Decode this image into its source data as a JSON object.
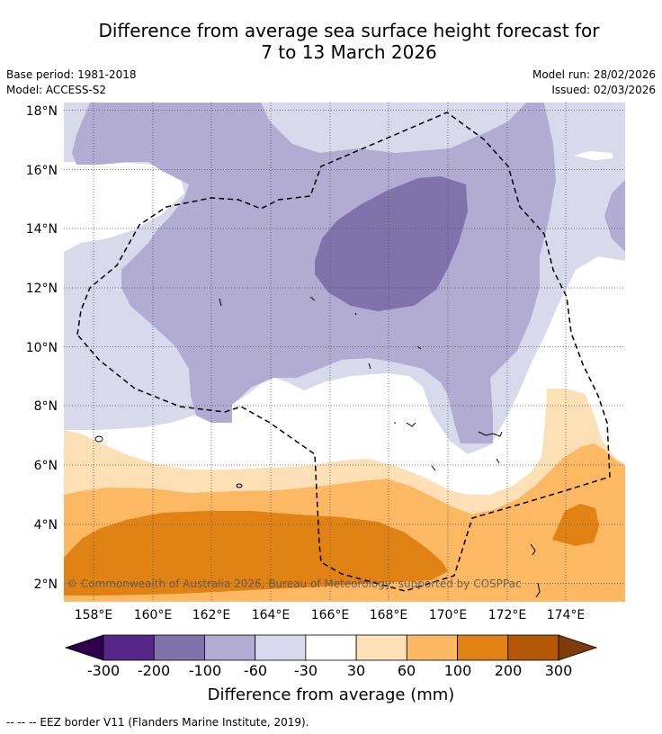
{
  "title": {
    "line1": "Difference from average sea surface height forecast for",
    "line2": "7 to 13 March 2026"
  },
  "meta": {
    "base_period": "Base period: 1981-2018",
    "model": "Model: ACCESS-S2",
    "model_run": "Model run: 28/02/2026",
    "issued": "Issued: 02/03/2026"
  },
  "map": {
    "lat_labels": [
      "18°N",
      "16°N",
      "14°N",
      "12°N",
      "10°N",
      "8°N",
      "6°N",
      "4°N",
      "2°N"
    ],
    "lon_labels": [
      "158°E",
      "160°E",
      "162°E",
      "164°E",
      "166°E",
      "168°E",
      "170°E",
      "172°E",
      "174°E"
    ],
    "copyright": "© Commonwealth of Australia 2026, Bureau of Meteorology; supported by COSPPac"
  },
  "colorbar": {
    "title": "Difference from average (mm)",
    "ticks": [
      "-300",
      "-200",
      "-100",
      "-60",
      "-30",
      "30",
      "60",
      "100",
      "200",
      "300"
    ],
    "colors": [
      "#2d004b",
      "#542788",
      "#8073ac",
      "#b2abd2",
      "#d8daeb",
      "#ffffff",
      "#fee0b6",
      "#fdb863",
      "#e08214",
      "#b35806",
      "#7f3b08"
    ]
  },
  "footnote": "--  --  -- EEZ border V11 (Flanders Marine Institute, 2019)."
}
